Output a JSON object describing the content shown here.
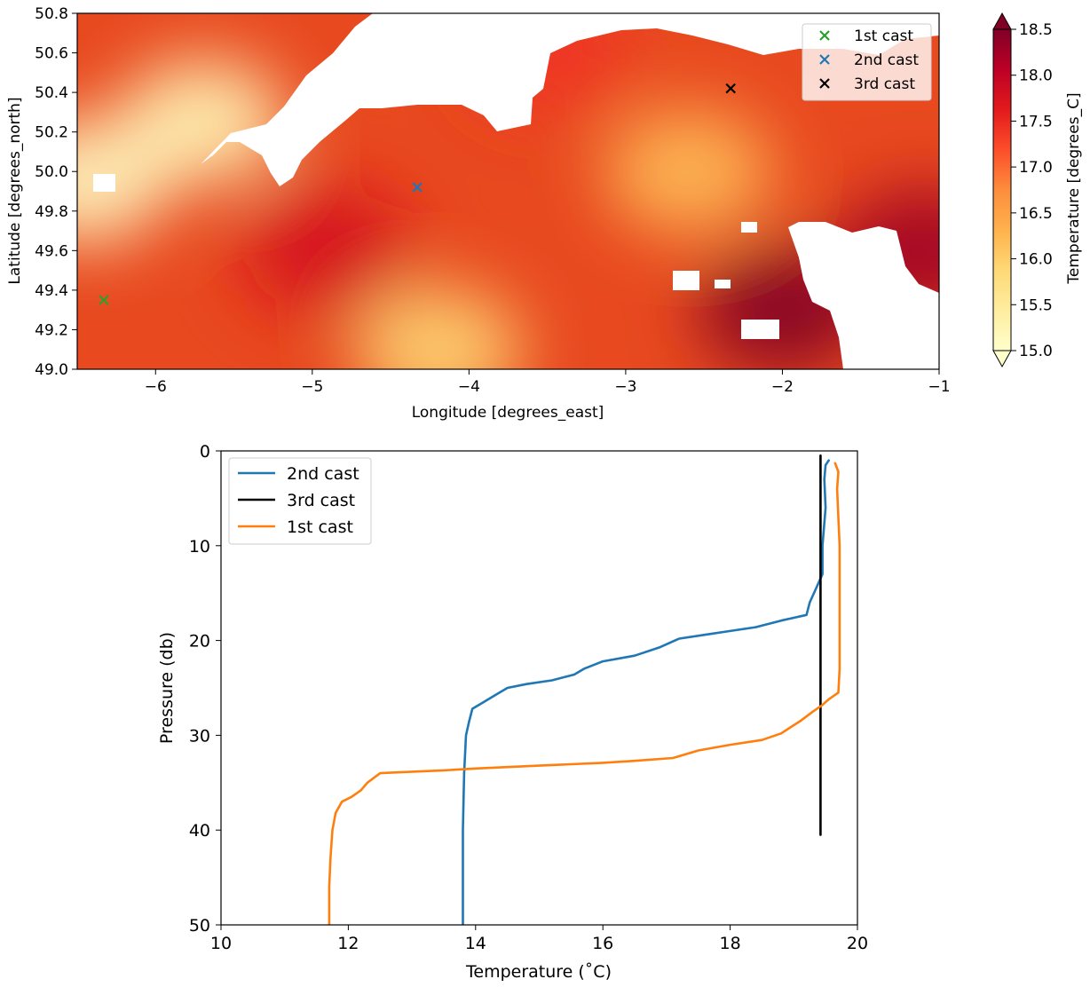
{
  "chart_data": [
    {
      "type": "heatmap",
      "title": "",
      "xlabel": "Longitude [degrees_east]",
      "ylabel": "Latitude [degrees_north]",
      "xlim": [
        -6.5,
        -1.0
      ],
      "ylim": [
        49.0,
        50.8
      ],
      "xticks": [
        -6,
        -5,
        -4,
        -3,
        -2,
        -1
      ],
      "yticks": [
        49.0,
        49.2,
        49.4,
        49.6,
        49.8,
        50.0,
        50.2,
        50.4,
        50.6,
        50.8
      ],
      "colorbar": {
        "label": "Temperature [degrees_C]",
        "min": 15.0,
        "max": 18.5,
        "extend": "both",
        "colormap": "YlOrRd",
        "ticks": [
          15.0,
          15.5,
          16.0,
          16.5,
          17.0,
          17.5,
          18.0,
          18.5
        ]
      },
      "legend_position": "top-right",
      "points": [
        {
          "name": "1st cast",
          "lon": -6.33,
          "lat": 49.35,
          "color": "#2ca02c",
          "marker": "x"
        },
        {
          "name": "2nd cast",
          "lon": -4.33,
          "lat": 49.92,
          "color": "#1f77b4",
          "marker": "x"
        },
        {
          "name": "3rd cast",
          "lon": -2.33,
          "lat": 50.42,
          "color": "#000000",
          "marker": "x"
        }
      ],
      "field_hotspots": [
        {
          "lon": -5.7,
          "lat": 50.25,
          "value": 15.2
        },
        {
          "lon": -6.45,
          "lat": 49.95,
          "value": 15.1
        },
        {
          "lon": -4.2,
          "lat": 49.1,
          "value": 15.9
        },
        {
          "lon": -2.6,
          "lat": 50.0,
          "value": 16.2
        },
        {
          "lon": -2.0,
          "lat": 49.3,
          "value": 18.6
        },
        {
          "lon": -1.1,
          "lat": 49.6,
          "value": 18.3
        },
        {
          "lon": -4.9,
          "lat": 49.6,
          "value": 17.8
        },
        {
          "lon": -3.5,
          "lat": 50.6,
          "value": 17.4
        }
      ]
    },
    {
      "type": "line",
      "title": "",
      "xlabel": "Temperature (˚C)",
      "ylabel": "Pressure (db)",
      "xlim": [
        10,
        20
      ],
      "ylim": [
        50,
        0
      ],
      "y_inverted": true,
      "xticks": [
        10,
        12,
        14,
        16,
        18,
        20
      ],
      "yticks": [
        0,
        10,
        20,
        30,
        40,
        50
      ],
      "legend_position": "top-left",
      "series": [
        {
          "name": "2nd cast",
          "color": "#1f77b4",
          "points": [
            [
              19.55,
              1
            ],
            [
              19.5,
              1.5
            ],
            [
              19.48,
              3
            ],
            [
              19.5,
              6
            ],
            [
              19.45,
              10
            ],
            [
              19.45,
              13
            ],
            [
              19.35,
              14.5
            ],
            [
              19.25,
              16
            ],
            [
              19.2,
              17.3
            ],
            [
              18.8,
              17.9
            ],
            [
              18.4,
              18.6
            ],
            [
              18.0,
              19.0
            ],
            [
              17.6,
              19.4
            ],
            [
              17.2,
              19.8
            ],
            [
              16.9,
              20.7
            ],
            [
              16.5,
              21.6
            ],
            [
              16.0,
              22.2
            ],
            [
              15.7,
              23.0
            ],
            [
              15.55,
              23.6
            ],
            [
              15.2,
              24.2
            ],
            [
              14.8,
              24.6
            ],
            [
              14.5,
              25.0
            ],
            [
              14.3,
              25.8
            ],
            [
              14.1,
              26.6
            ],
            [
              13.95,
              27.2
            ],
            [
              13.9,
              28.5
            ],
            [
              13.85,
              30
            ],
            [
              13.82,
              34
            ],
            [
              13.8,
              40
            ],
            [
              13.8,
              50
            ]
          ]
        },
        {
          "name": "3rd cast",
          "color": "#000000",
          "points": [
            [
              19.42,
              0.5
            ],
            [
              19.42,
              10
            ],
            [
              19.42,
              20
            ],
            [
              19.42,
              30
            ],
            [
              19.42,
              40.5
            ]
          ]
        },
        {
          "name": "1st cast",
          "color": "#ff7f0e",
          "points": [
            [
              19.65,
              1.3
            ],
            [
              19.7,
              2.2
            ],
            [
              19.68,
              4
            ],
            [
              19.72,
              10
            ],
            [
              19.72,
              20
            ],
            [
              19.72,
              23
            ],
            [
              19.7,
              25.5
            ],
            [
              19.55,
              26.2
            ],
            [
              19.45,
              26.8
            ],
            [
              19.3,
              27.5
            ],
            [
              19.1,
              28.5
            ],
            [
              18.8,
              29.8
            ],
            [
              18.5,
              30.5
            ],
            [
              18.0,
              31.0
            ],
            [
              17.5,
              31.6
            ],
            [
              17.1,
              32.4
            ],
            [
              16.5,
              32.7
            ],
            [
              16.0,
              32.9
            ],
            [
              15.0,
              33.2
            ],
            [
              14.0,
              33.5
            ],
            [
              13.5,
              33.7
            ],
            [
              12.8,
              33.9
            ],
            [
              12.5,
              34.0
            ],
            [
              12.3,
              35.0
            ],
            [
              12.2,
              35.8
            ],
            [
              12.05,
              36.5
            ],
            [
              11.9,
              37.0
            ],
            [
              11.8,
              38.2
            ],
            [
              11.75,
              40
            ],
            [
              11.72,
              43
            ],
            [
              11.7,
              46
            ],
            [
              11.7,
              50
            ]
          ]
        }
      ]
    }
  ]
}
